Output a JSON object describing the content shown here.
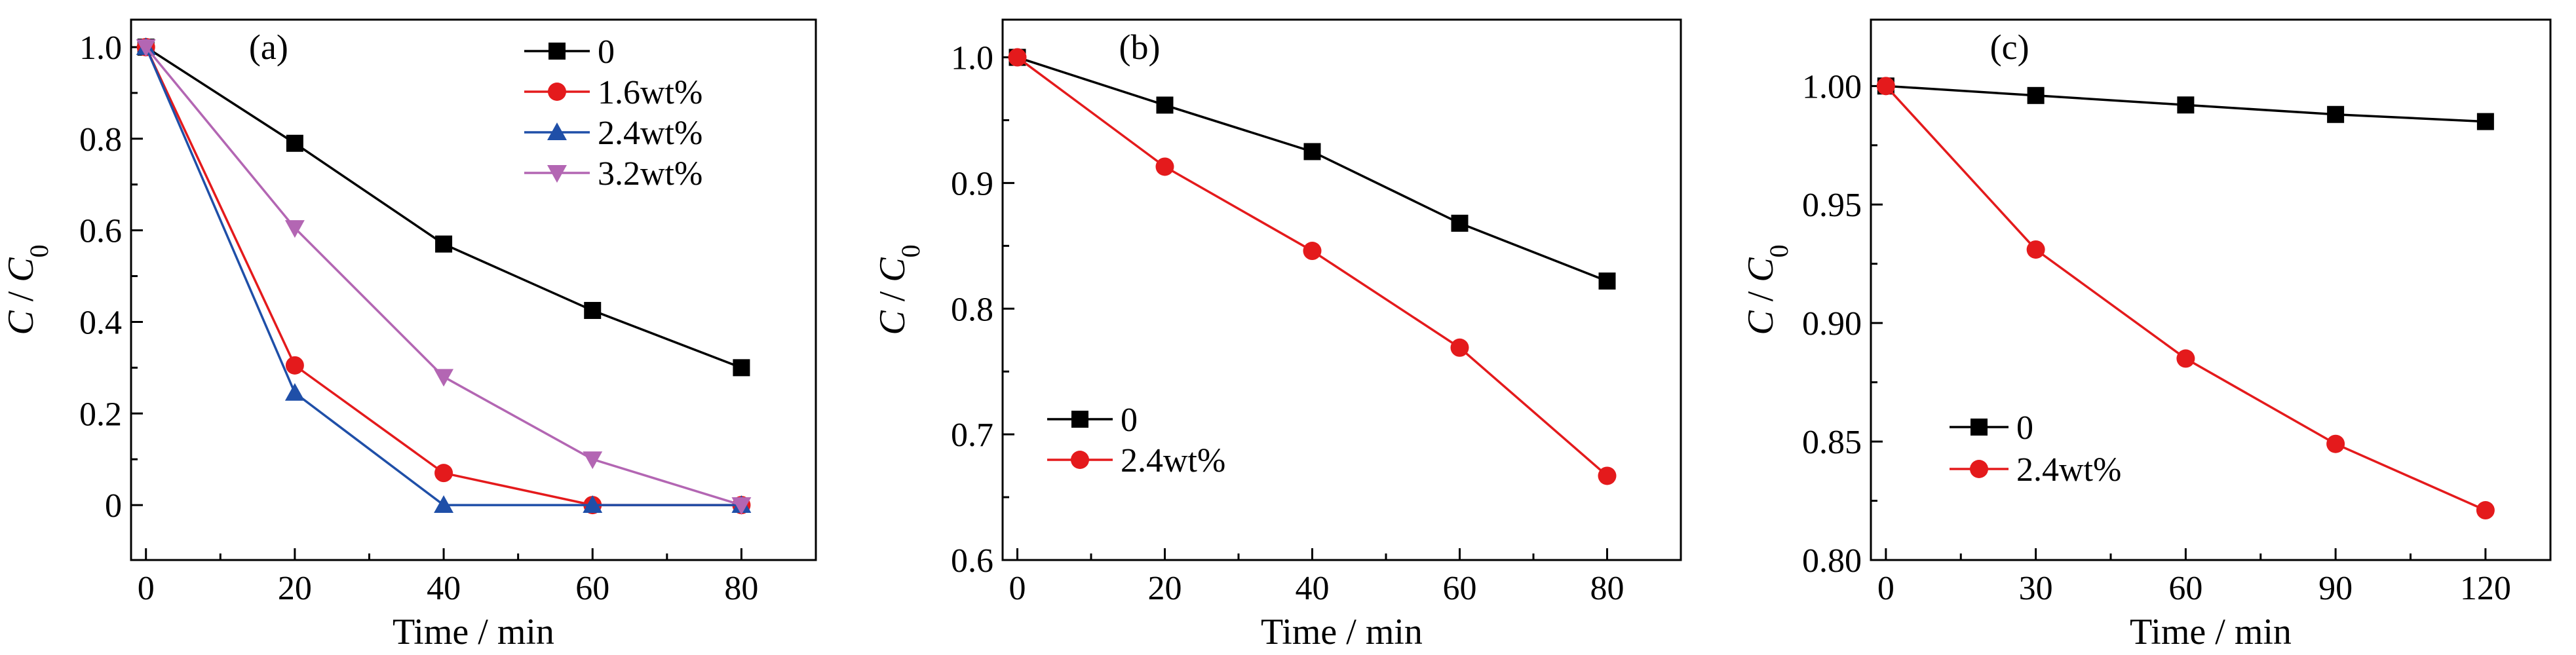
{
  "chart_data": [
    {
      "type": "line",
      "panel_label": "(a)",
      "xlabel": "Time / min",
      "ylabel": "C / C0",
      "xlim": [
        -2,
        90
      ],
      "ylim": [
        -0.12,
        1.06
      ],
      "xticks": [
        0,
        20,
        40,
        60,
        80
      ],
      "yticks": [
        0,
        0.2,
        0.4,
        0.6,
        0.8,
        1.0
      ],
      "ytick_labels": [
        "0",
        "0.2",
        "0.4",
        "0.6",
        "0.8",
        "1.0"
      ],
      "legend_position": "top-right",
      "series": [
        {
          "name": "0",
          "color": "#000000",
          "marker": "square",
          "x": [
            0,
            20,
            40,
            60,
            80
          ],
          "y": [
            1.0,
            0.79,
            0.57,
            0.425,
            0.3
          ]
        },
        {
          "name": "1.6wt%",
          "color": "#e41a1c",
          "marker": "circle",
          "x": [
            0,
            20,
            40,
            60,
            80
          ],
          "y": [
            1.0,
            0.305,
            0.07,
            0.0,
            0.0
          ]
        },
        {
          "name": "2.4wt%",
          "color": "#1f4fa8",
          "marker": "triangle-up",
          "x": [
            0,
            20,
            40,
            60,
            80
          ],
          "y": [
            1.0,
            0.245,
            0.0,
            0.0,
            0.0
          ]
        },
        {
          "name": "3.2wt%",
          "color": "#b366b3",
          "marker": "triangle-down",
          "x": [
            0,
            20,
            40,
            60,
            80
          ],
          "y": [
            1.0,
            0.605,
            0.28,
            0.1,
            0.0
          ]
        }
      ]
    },
    {
      "type": "line",
      "panel_label": "(b)",
      "xlabel": "Time / min",
      "ylabel": "C / C0",
      "xlim": [
        -2,
        90
      ],
      "ylim": [
        0.6,
        1.03
      ],
      "xticks": [
        0,
        20,
        40,
        60,
        80
      ],
      "yticks": [
        0.6,
        0.7,
        0.8,
        0.9,
        1.0
      ],
      "ytick_labels": [
        "0.6",
        "0.7",
        "0.8",
        "0.9",
        "1.0"
      ],
      "legend_position": "bottom-left",
      "series": [
        {
          "name": "0",
          "color": "#000000",
          "marker": "square",
          "x": [
            0,
            20,
            40,
            60,
            80
          ],
          "y": [
            1.0,
            0.962,
            0.925,
            0.868,
            0.822
          ]
        },
        {
          "name": "2.4wt%",
          "color": "#e41a1c",
          "marker": "circle",
          "x": [
            0,
            20,
            40,
            60,
            80
          ],
          "y": [
            1.0,
            0.913,
            0.846,
            0.769,
            0.667
          ]
        }
      ]
    },
    {
      "type": "line",
      "panel_label": "(c)",
      "xlabel": "Time / min",
      "ylabel": "C / C0",
      "xlim": [
        -3,
        133
      ],
      "ylim": [
        0.8,
        1.028
      ],
      "xticks": [
        0,
        30,
        60,
        90,
        120
      ],
      "yticks": [
        0.8,
        0.85,
        0.9,
        0.95,
        1.0
      ],
      "ytick_labels": [
        "0.80",
        "0.85",
        "0.90",
        "0.95",
        "1.00"
      ],
      "legend_position": "bottom-left",
      "series": [
        {
          "name": "0",
          "color": "#000000",
          "marker": "square",
          "x": [
            0,
            30,
            60,
            90,
            120
          ],
          "y": [
            1.0,
            0.996,
            0.992,
            0.988,
            0.985
          ]
        },
        {
          "name": "2.4wt%",
          "color": "#e41a1c",
          "marker": "circle",
          "x": [
            0,
            30,
            60,
            90,
            120
          ],
          "y": [
            1.0,
            0.931,
            0.885,
            0.849,
            0.821
          ]
        }
      ]
    }
  ]
}
